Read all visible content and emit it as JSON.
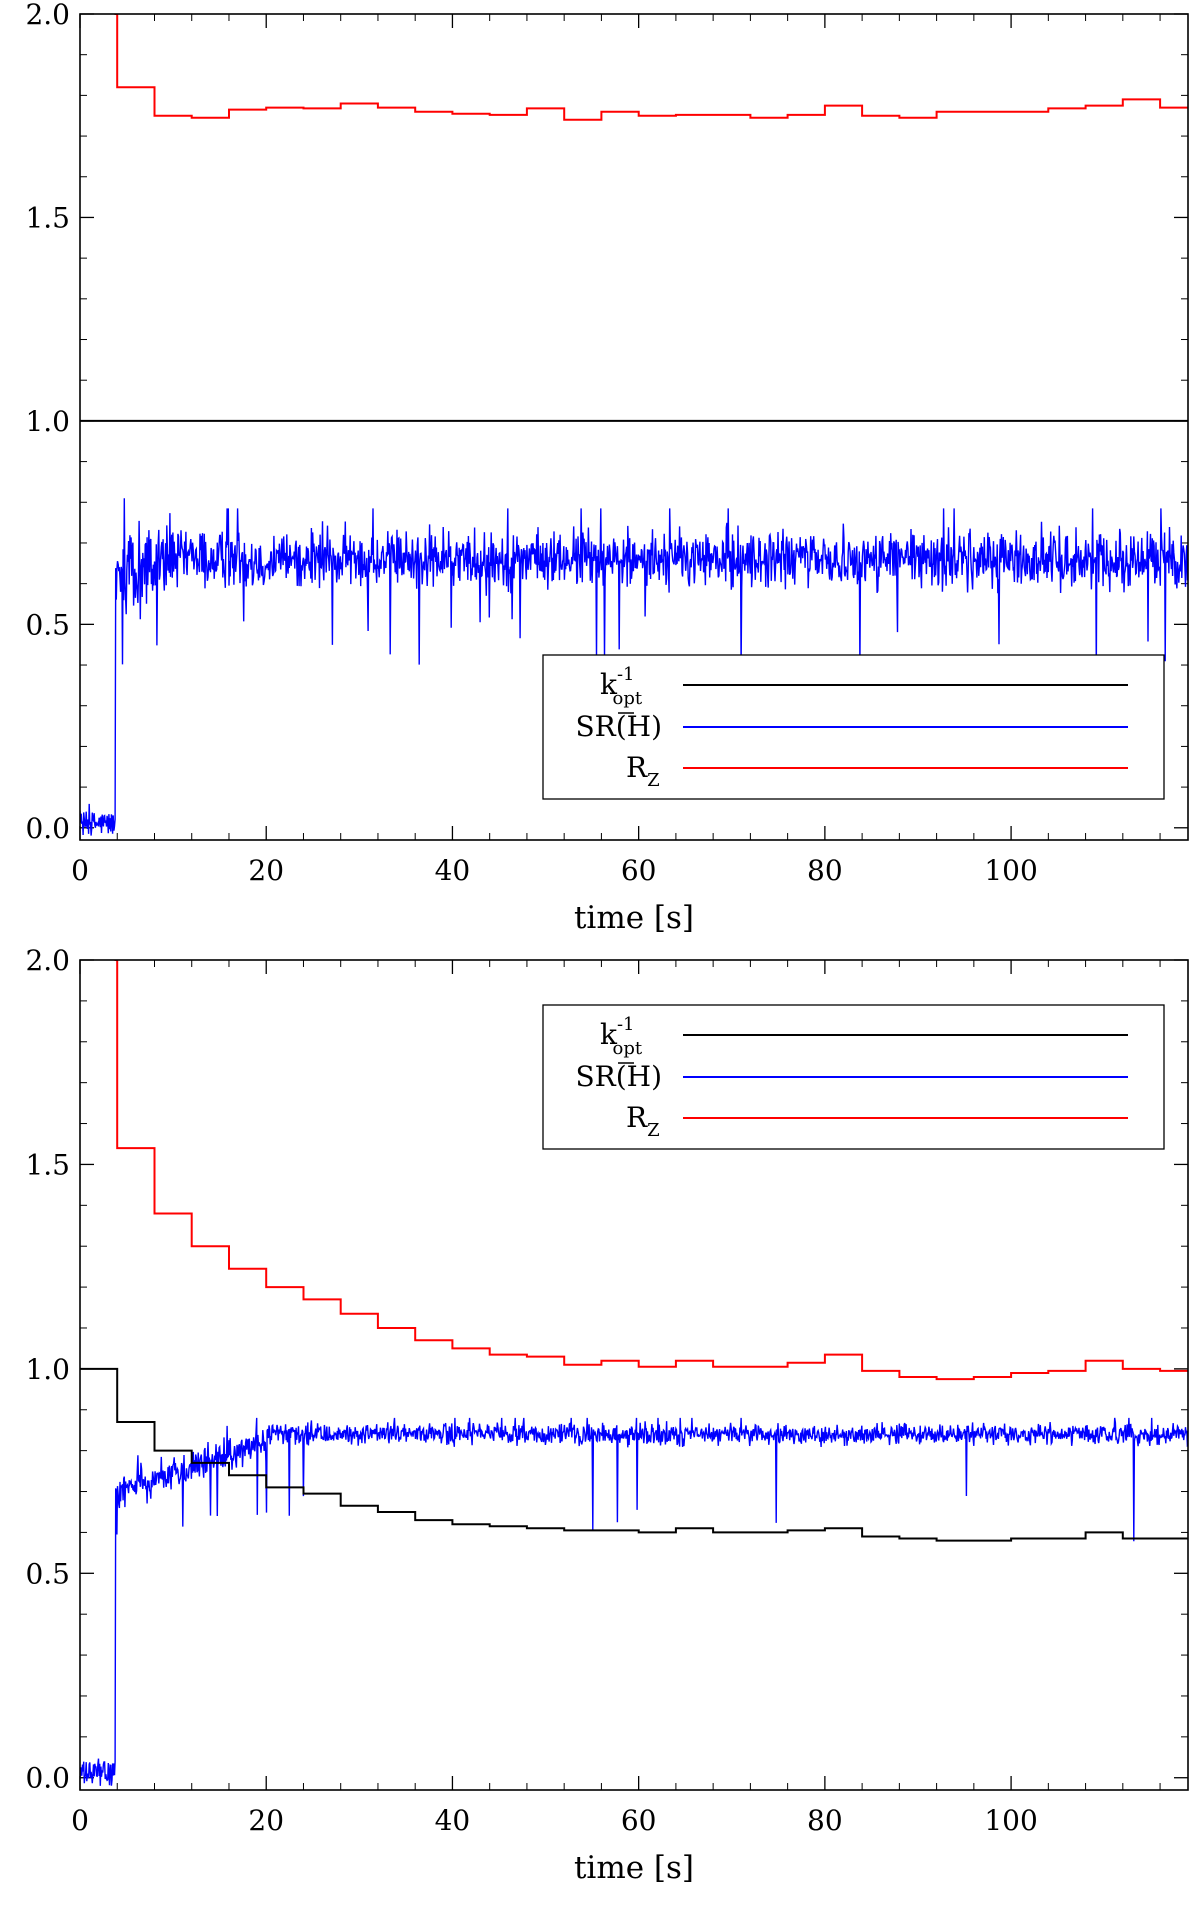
{
  "chart_data": [
    {
      "type": "line",
      "title": "",
      "xlabel": "time [s]",
      "ylabel": "",
      "xlim": [
        0,
        119
      ],
      "ylim": [
        -0.03,
        2.0
      ],
      "xticks": [
        0,
        20,
        40,
        60,
        80,
        100
      ],
      "xtick_labels": [
        "0",
        "20",
        "40",
        "60",
        "80",
        "100"
      ],
      "yticks": [
        0.0,
        0.5,
        1.0,
        1.5,
        2.0
      ],
      "ytick_labels": [
        "0.0",
        "0.5",
        "1.0",
        "1.5",
        "2.0"
      ],
      "legend_position": "bottom-right",
      "series": [
        {
          "name": "k_opt^-1",
          "label_main": "k",
          "label_sup": "-1",
          "label_sub": "opt",
          "color": "#000000",
          "style": "step",
          "x": [
            0,
            4,
            8,
            12,
            16,
            20,
            24,
            28,
            32,
            36,
            40,
            44,
            48,
            52,
            56,
            60,
            64,
            68,
            72,
            76,
            80,
            84,
            88,
            92,
            96,
            100,
            104,
            108,
            112,
            116,
            119
          ],
          "values": [
            1.0,
            1.0,
            1.0,
            1.0,
            1.0,
            1.0,
            1.0,
            1.0,
            1.0,
            1.0,
            1.0,
            1.0,
            1.0,
            1.0,
            1.0,
            1.0,
            1.0,
            1.0,
            1.0,
            1.0,
            1.0,
            1.0,
            1.0,
            1.0,
            1.0,
            1.0,
            1.0,
            1.0,
            1.0,
            1.0,
            1.0
          ]
        },
        {
          "name": "SR(H)",
          "label_main": "SR(H)",
          "color": "#0000ff",
          "style": "noise",
          "x_range": [
            0,
            119
          ],
          "pre_jump_end": 3.8,
          "pre_jump_mean": 0.01,
          "pre_jump_amplitude": 0.03,
          "ramp_x": [
            4,
            10
          ],
          "ramp_mean": [
            0.62,
            0.66
          ],
          "mean": 0.66,
          "amplitude": 0.05,
          "spike_min": 0.39,
          "spike_max": 0.81
        },
        {
          "name": "R_Z",
          "label_main": "R",
          "label_sub": "Z",
          "color": "#ff0000",
          "style": "step",
          "x": [
            3.7,
            4,
            8,
            12,
            16,
            20,
            24,
            28,
            32,
            36,
            40,
            44,
            48,
            52,
            56,
            60,
            64,
            68,
            72,
            76,
            80,
            84,
            88,
            92,
            96,
            100,
            104,
            108,
            112,
            116,
            119
          ],
          "values": [
            2.0,
            1.82,
            1.75,
            1.745,
            1.765,
            1.77,
            1.768,
            1.78,
            1.77,
            1.76,
            1.755,
            1.752,
            1.768,
            1.74,
            1.76,
            1.75,
            1.752,
            1.752,
            1.745,
            1.752,
            1.775,
            1.75,
            1.745,
            1.76,
            1.76,
            1.76,
            1.768,
            1.775,
            1.79,
            1.77,
            1.77
          ]
        }
      ]
    },
    {
      "type": "line",
      "title": "",
      "xlabel": "time [s]",
      "ylabel": "",
      "xlim": [
        0,
        119
      ],
      "ylim": [
        -0.03,
        2.0
      ],
      "xticks": [
        0,
        20,
        40,
        60,
        80,
        100
      ],
      "xtick_labels": [
        "0",
        "20",
        "40",
        "60",
        "80",
        "100"
      ],
      "yticks": [
        0.0,
        0.5,
        1.0,
        1.5,
        2.0
      ],
      "ytick_labels": [
        "0.0",
        "0.5",
        "1.0",
        "1.5",
        "2.0"
      ],
      "legend_position": "top-right",
      "series": [
        {
          "name": "k_opt^-1",
          "label_main": "k",
          "label_sup": "-1",
          "label_sub": "opt",
          "color": "#000000",
          "style": "step",
          "x": [
            0,
            4,
            8,
            12,
            16,
            20,
            24,
            28,
            32,
            36,
            40,
            44,
            48,
            52,
            56,
            60,
            64,
            68,
            72,
            76,
            80,
            84,
            88,
            92,
            96,
            100,
            104,
            108,
            112,
            116,
            119
          ],
          "values": [
            1.0,
            0.87,
            0.8,
            0.77,
            0.74,
            0.71,
            0.695,
            0.665,
            0.65,
            0.63,
            0.62,
            0.615,
            0.61,
            0.605,
            0.605,
            0.6,
            0.61,
            0.6,
            0.6,
            0.605,
            0.61,
            0.59,
            0.585,
            0.58,
            0.58,
            0.585,
            0.585,
            0.6,
            0.585,
            0.585,
            0.585
          ]
        },
        {
          "name": "SR(H)",
          "label_main": "SR(H)",
          "color": "#0000ff",
          "style": "noise",
          "x_range": [
            0,
            119
          ],
          "pre_jump_end": 3.8,
          "pre_jump_mean": 0.01,
          "pre_jump_amplitude": 0.03,
          "ramp_x": [
            4,
            20
          ],
          "ramp_mean": [
            0.7,
            0.82
          ],
          "mean": 0.84,
          "amplitude": 0.018,
          "spike_min": 0.55,
          "spike_max": 0.88
        },
        {
          "name": "R_Z",
          "label_main": "R",
          "label_sub": "Z",
          "color": "#ff0000",
          "style": "step",
          "x": [
            3.7,
            4,
            8,
            12,
            16,
            20,
            24,
            28,
            32,
            36,
            40,
            44,
            48,
            52,
            56,
            60,
            64,
            68,
            72,
            76,
            80,
            84,
            88,
            92,
            96,
            100,
            104,
            108,
            112,
            116,
            119
          ],
          "values": [
            2.0,
            1.54,
            1.38,
            1.3,
            1.245,
            1.2,
            1.17,
            1.135,
            1.1,
            1.07,
            1.05,
            1.035,
            1.03,
            1.01,
            1.02,
            1.005,
            1.02,
            1.005,
            1.005,
            1.015,
            1.035,
            0.995,
            0.98,
            0.975,
            0.98,
            0.99,
            0.995,
            1.02,
            1.0,
            0.995,
            0.995
          ]
        }
      ]
    }
  ]
}
